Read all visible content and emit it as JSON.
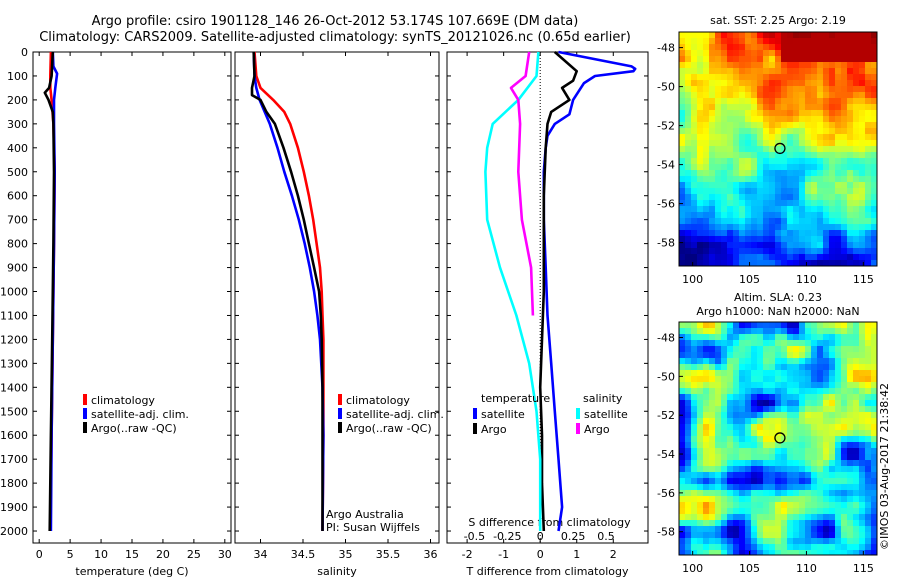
{
  "title_line1": "Argo profile: csiro 1901128_146 26-Oct-2012 53.174S 107.669E (DM data)",
  "title_line2": "Climatology: CARS2009. Satellite-adjusted climatology: synTS_20121026.nc (0.65d earlier)",
  "credit": "Argo Australia",
  "pi": "PI: Susan Wijffels",
  "footer": "©IMOS 03-Aug-2017 21:38:42",
  "colors": {
    "climatology": "#ff0000",
    "satellite": "#0000ff",
    "argo": "#000000",
    "sal_sat": "#00ffff",
    "sal_argo": "#ff00ff"
  },
  "chart_data": [
    {
      "type": "line",
      "id": "temperature",
      "xlabel": "temperature (deg C)",
      "ylim": [
        2050,
        0
      ],
      "xlim": [
        -1,
        31
      ],
      "xticks": [
        0,
        5,
        10,
        15,
        20,
        25,
        30
      ],
      "yticks": [
        0,
        100,
        200,
        300,
        400,
        500,
        600,
        700,
        800,
        900,
        1000,
        1100,
        1200,
        1300,
        1400,
        1500,
        1600,
        1700,
        1800,
        1900,
        2000
      ],
      "legend": [
        "climatology",
        "satellite-adj. clim.",
        "Argo(..raw -QC)"
      ],
      "series": [
        {
          "name": "climatology",
          "color": "#ff0000",
          "depth": [
            0,
            100,
            150,
            200,
            300,
            500,
            800,
            1200,
            1600,
            2000
          ],
          "values": [
            1.9,
            1.8,
            1.8,
            2.0,
            2.3,
            2.5,
            2.4,
            2.2,
            2.0,
            1.8
          ]
        },
        {
          "name": "satellite-adj. clim.",
          "color": "#0000ff",
          "depth": [
            0,
            60,
            90,
            150,
            200,
            300,
            500,
            800,
            1200,
            1600,
            2000
          ],
          "values": [
            2.2,
            2.3,
            2.9,
            2.6,
            2.4,
            2.4,
            2.5,
            2.4,
            2.2,
            2.0,
            1.9
          ]
        },
        {
          "name": "Argo(..raw -QC)",
          "color": "#000000",
          "depth": [
            0,
            100,
            150,
            170,
            200,
            250,
            300,
            500,
            800,
            1200,
            1600,
            2000
          ],
          "values": [
            2.2,
            2.0,
            1.6,
            0.9,
            1.5,
            2.2,
            2.3,
            2.4,
            2.3,
            2.1,
            1.9,
            1.7
          ]
        }
      ]
    },
    {
      "type": "line",
      "id": "salinity",
      "xlabel": "salinity",
      "ylim": [
        2050,
        0
      ],
      "xlim": [
        33.7,
        36.1
      ],
      "xticks": [
        34,
        34.5,
        35,
        35.5,
        36
      ],
      "xticklabels": [
        "34",
        "34.5",
        "35",
        "35.5",
        "36"
      ],
      "legend": [
        "climatology",
        "satellite-adj. clim.",
        "Argo(..raw -QC)"
      ],
      "series": [
        {
          "name": "climatology",
          "color": "#ff0000",
          "depth": [
            0,
            100,
            150,
            200,
            250,
            300,
            400,
            500,
            600,
            700,
            800,
            900,
            1000,
            1100,
            1200,
            1400,
            1600,
            2000
          ],
          "values": [
            33.93,
            33.95,
            34.0,
            34.15,
            34.28,
            34.35,
            34.44,
            34.51,
            34.57,
            34.62,
            34.66,
            34.7,
            34.72,
            34.73,
            34.74,
            34.74,
            34.74,
            34.73
          ]
        },
        {
          "name": "satellite-adj. clim.",
          "color": "#0000ff",
          "depth": [
            0,
            100,
            150,
            200,
            250,
            300,
            400,
            500,
            600,
            700,
            800,
            900,
            1000,
            1100,
            1200,
            1400,
            1600,
            2000
          ],
          "values": [
            33.92,
            33.93,
            33.95,
            33.99,
            34.05,
            34.11,
            34.2,
            34.28,
            34.37,
            34.45,
            34.52,
            34.58,
            34.63,
            34.67,
            34.7,
            34.73,
            34.74,
            34.73
          ]
        },
        {
          "name": "Argo(..raw -QC)",
          "color": "#000000",
          "depth": [
            0,
            100,
            150,
            180,
            200,
            250,
            300,
            400,
            500,
            600,
            700,
            800,
            900,
            1000,
            1100,
            1200,
            1400,
            1600,
            2000
          ],
          "values": [
            33.92,
            33.93,
            33.9,
            33.9,
            34.0,
            34.07,
            34.17,
            34.27,
            34.36,
            34.44,
            34.51,
            34.57,
            34.63,
            34.69,
            34.71,
            34.72,
            34.73,
            34.73,
            34.73
          ]
        }
      ]
    },
    {
      "type": "line",
      "id": "difference",
      "xlabel": "T difference from climatology",
      "xlabel_top": "S difference from climatology",
      "ylim": [
        2050,
        0
      ],
      "xlim": [
        -2.55,
        2.95
      ],
      "xticks": [
        -2,
        -1,
        0,
        1,
        2
      ],
      "s_ticklabels": [
        "-0.5",
        "-0.25",
        "0",
        "0.25",
        "0.5"
      ],
      "s_tickpositions_T": [
        -1.8,
        -0.9,
        0,
        0.9,
        1.8
      ],
      "legend_temperature_title": "temperature",
      "legend_salinity_title": "salinity",
      "legend": [
        "satellite",
        "Argo",
        "satellite",
        "Argo"
      ],
      "series": [
        {
          "name": "satellite",
          "group": "temperature",
          "color": "#0000ff",
          "depth": [
            0,
            60,
            70,
            80,
            100,
            130,
            200,
            260,
            300,
            350,
            400,
            500,
            700,
            900,
            1100,
            1300,
            1500,
            1700,
            1900,
            2000
          ],
          "values": [
            0.5,
            2.5,
            2.6,
            2.55,
            1.5,
            1.2,
            0.9,
            0.8,
            0.4,
            0.2,
            0.15,
            0.1,
            0.1,
            0.15,
            0.2,
            0.3,
            0.4,
            0.5,
            0.6,
            0.5
          ]
        },
        {
          "name": "Argo",
          "group": "temperature",
          "color": "#000000",
          "depth": [
            0,
            80,
            120,
            150,
            200,
            250,
            300,
            400,
            600,
            800,
            1000,
            1200,
            1400,
            1600,
            1800,
            2000
          ],
          "values": [
            0.4,
            1.0,
            0.9,
            0.6,
            0.8,
            0.3,
            0.2,
            0.15,
            0.1,
            0.1,
            0.1,
            0.05,
            0.0,
            0.05,
            0.05,
            0.1
          ]
        },
        {
          "name": "satellite",
          "group": "salinity",
          "color": "#00ffff",
          "depth": [
            0,
            100,
            200,
            300,
            400,
            500,
            700,
            900,
            1100,
            1300,
            1500,
            1700,
            1900,
            2000
          ],
          "values": [
            -0.05,
            -0.1,
            -0.6,
            -1.3,
            -1.45,
            -1.5,
            -1.45,
            -1.1,
            -0.65,
            -0.3,
            -0.1,
            0.0,
            0.0,
            0.0
          ]
        },
        {
          "name": "Argo",
          "group": "salinity",
          "color": "#ff00ff",
          "depth": [
            0,
            100,
            150,
            200,
            300,
            500,
            700,
            900,
            1100
          ],
          "values": [
            -0.3,
            -0.4,
            -0.8,
            -0.6,
            -0.55,
            -0.6,
            -0.5,
            -0.25,
            -0.2
          ]
        }
      ]
    },
    {
      "type": "heatmap",
      "id": "sst_map",
      "title": "sat. SST: 2.25 Argo: 2.19",
      "xticks": [
        100,
        105,
        110,
        115
      ],
      "yticks": [
        -48,
        -50,
        -52,
        -54,
        -56,
        -58
      ],
      "marker": {
        "lon": 107.67,
        "lat": -53.17
      }
    },
    {
      "type": "heatmap",
      "id": "sla_map",
      "title": "Altim. SLA: 0.23",
      "subtitle": "Argo h1000: NaN h2000: NaN",
      "xticks": [
        100,
        105,
        110,
        115
      ],
      "yticks": [
        -48,
        -50,
        -52,
        -54,
        -56,
        -58
      ],
      "marker": {
        "lon": 107.67,
        "lat": -53.17
      }
    }
  ]
}
